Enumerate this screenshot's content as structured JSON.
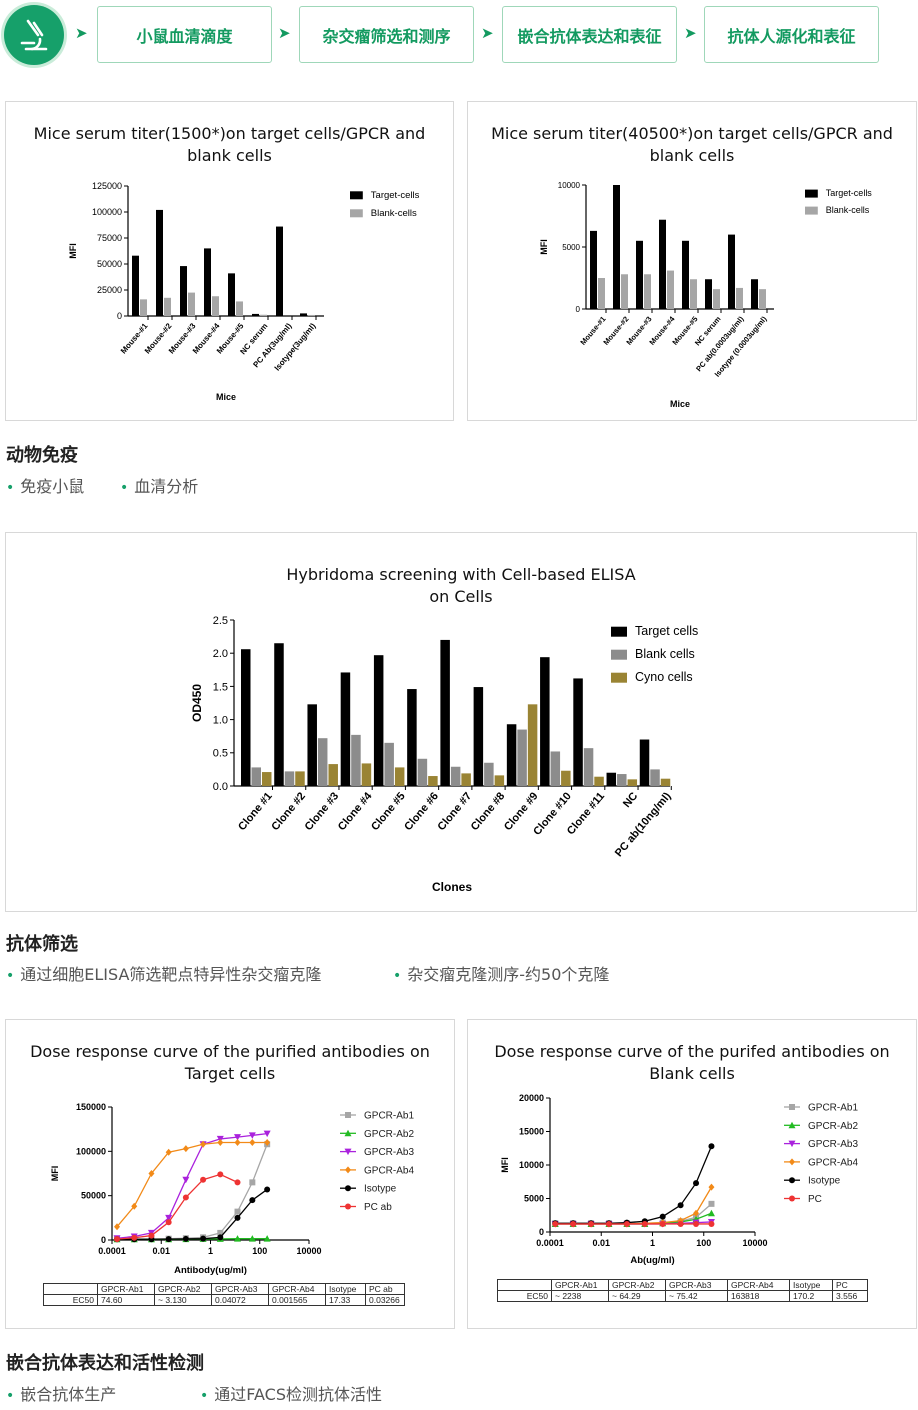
{
  "flow": {
    "steps": [
      "小鼠血清滴度",
      "杂交瘤筛选和测序",
      "嵌合抗体表达和表征",
      "抗体人源化和表征"
    ],
    "arrow": "➤",
    "logo_icon": "microscope-icon"
  },
  "sections": [
    {
      "title": "动物免疫",
      "bullets": [
        "免疫小鼠",
        "血清分析"
      ]
    },
    {
      "title": "抗体筛选",
      "bullets": [
        "通过细胞ELISA筛选靶点特异性杂交瘤克隆",
        "杂交瘤克隆测序-约50个克隆"
      ]
    },
    {
      "title": "嵌合抗体表达和活性检测",
      "bullets": [
        "嵌合抗体生产",
        "通过FACS检测抗体活性"
      ]
    }
  ],
  "chart_data": [
    {
      "type": "bar",
      "title": "Mice serum titer(1500*)on target cells/GPCR and blank cells",
      "title_lines": [
        "Mice serum titer(1500*)on target cells/GPCR and",
        "blank cells"
      ],
      "xlabel": "Mice",
      "ylabel": "MFI",
      "ylim": [
        0,
        125000
      ],
      "yticks": [
        "0",
        "25000",
        "50000",
        "75000",
        "100000",
        "125000"
      ],
      "categories": [
        "Mouse-#1",
        "Mouse-#2",
        "Mouse-#3",
        "Mouse-#4",
        "Mouse-#5",
        "NC serum",
        "PC Ab(3ug/ml)",
        "Isotype(3ug/ml)"
      ],
      "series": [
        {
          "name": "Target-cells",
          "color": "#000000",
          "values": [
            58000,
            102000,
            48000,
            65000,
            41000,
            2000,
            86000,
            2500
          ]
        },
        {
          "name": "Blank-cells",
          "color": "#a6a6a6",
          "values": [
            16000,
            17500,
            22500,
            19000,
            14000,
            1200,
            0,
            1000
          ]
        }
      ],
      "legend": "top-right"
    },
    {
      "type": "bar",
      "title": "Mice serum titer(40500*)on target cells/GPCR and blank cells",
      "title_lines": [
        "Mice serum titer(40500*)on target cells/GPCR and",
        "blank cells"
      ],
      "xlabel": "Mice",
      "ylabel": "MFI",
      "ylim": [
        0,
        10000
      ],
      "yticks": [
        "0",
        "5000",
        "10000"
      ],
      "categories": [
        "Mouse-#1",
        "Mouse-#2",
        "Mouse-#3",
        "Mouse-#4",
        "Mouse-#5",
        "NC serum",
        "PC ab(0.0003ug/ml)",
        "Isotype (0.0003ug/ml)"
      ],
      "series": [
        {
          "name": "Target-cells",
          "color": "#000000",
          "values": [
            6300,
            10000,
            5500,
            7200,
            5500,
            2400,
            6000,
            2400
          ]
        },
        {
          "name": "Blank-cells",
          "color": "#a6a6a6",
          "values": [
            2500,
            2800,
            2800,
            3100,
            2400,
            1600,
            1700,
            1600
          ]
        }
      ],
      "legend": "top-right"
    },
    {
      "type": "bar",
      "title": "Hybridoma screening with Cell-based ELISA on Cells",
      "title_lines": [
        "Hybridoma screening with Cell-based ELISA",
        "on Cells"
      ],
      "xlabel": "Clones",
      "ylabel": "OD450",
      "ylim": [
        0,
        2.5
      ],
      "yticks": [
        "0.0",
        "0.5",
        "1.0",
        "1.5",
        "2.0",
        "2.5"
      ],
      "categories": [
        "Clone #1",
        "Clone #2",
        "Clone #3",
        "Clone #4",
        "Clone #5",
        "Clone #6",
        "Clone #7",
        "Clone #8",
        "Clone #9",
        "Clone #10",
        "Clone #11",
        "NC",
        "PC ab(10ng/ml)"
      ],
      "series": [
        {
          "name": "Target cells",
          "color": "#000000",
          "values": [
            2.06,
            2.15,
            1.23,
            1.71,
            1.97,
            1.46,
            2.2,
            1.49,
            0.93,
            1.94,
            1.62,
            0.2,
            0.7
          ]
        },
        {
          "name": "Blank cells",
          "color": "#8c8c8c",
          "values": [
            0.28,
            0.22,
            0.72,
            0.77,
            0.65,
            0.41,
            0.29,
            0.35,
            0.85,
            0.52,
            0.57,
            0.18,
            0.25
          ]
        },
        {
          "name": "Cyno cells",
          "color": "#9a8434",
          "values": [
            0.21,
            0.22,
            0.33,
            0.34,
            0.28,
            0.15,
            0.19,
            0.16,
            1.23,
            0.23,
            0.14,
            0.1,
            0.11
          ]
        }
      ],
      "legend": "top-right"
    },
    {
      "type": "line",
      "title": "Dose response curve of the purified antibodies on Target cells",
      "title_lines": [
        "Dose response curve of the purified antibodies on",
        "Target cells"
      ],
      "xlabel": "Antibody(ug/ml)",
      "ylabel": "MFI",
      "xscale": "log",
      "xlim": [
        0.0001,
        10000
      ],
      "xticks": [
        "0.0001",
        "0.01",
        "1",
        "100",
        "10000"
      ],
      "ylim": [
        0,
        150000
      ],
      "yticks": [
        "0",
        "50000",
        "100000",
        "150000"
      ],
      "x": [
        0.00016,
        0.0008,
        0.004,
        0.02,
        0.1,
        0.5,
        2.5,
        12.5,
        50,
        200
      ],
      "series": [
        {
          "name": "GPCR-Ab1",
          "color": "#a6a6a6",
          "marker": "square",
          "values": [
            1000,
            1000,
            1000,
            1500,
            2000,
            3000,
            8000,
            32000,
            65000,
            108000
          ]
        },
        {
          "name": "GPCR-Ab2",
          "color": "#22bb22",
          "marker": "triangle-up",
          "values": [
            800,
            800,
            800,
            900,
            1000,
            1200,
            1300,
            1500,
            1500,
            1500
          ]
        },
        {
          "name": "GPCR-Ab3",
          "color": "#aa22dd",
          "marker": "triangle-down",
          "values": [
            2000,
            4000,
            8000,
            25000,
            68000,
            108000,
            114000,
            116000,
            118000,
            120000
          ]
        },
        {
          "name": "GPCR-Ab4",
          "color": "#f28a18",
          "marker": "diamond",
          "values": [
            15000,
            38000,
            75000,
            99000,
            103000,
            108000,
            110000,
            110000,
            110000,
            110000
          ]
        },
        {
          "name": "Isotype",
          "color": "#000000",
          "marker": "circle",
          "values": [
            800,
            800,
            900,
            1000,
            1200,
            1500,
            3000,
            25000,
            45000,
            57000
          ]
        },
        {
          "name": "PC ab",
          "color": "#ee3333",
          "marker": "circle",
          "values": [
            1000,
            2500,
            5000,
            20000,
            48000,
            68000,
            74000,
            65000,
            null,
            null
          ]
        }
      ],
      "ec50_table": {
        "header": [
          "",
          "GPCR-Ab1",
          "GPCR-Ab2",
          "GPCR-Ab3",
          "GPCR-Ab4",
          "Isotype",
          "PC ab"
        ],
        "row": [
          "EC50",
          "74.60",
          "~ 3.130",
          "0.04072",
          "0.001565",
          "17.33",
          "0.03266"
        ]
      },
      "legend": "right"
    },
    {
      "type": "line",
      "title": "Dose response curve of the purifed antibodies on Blank cells",
      "title_lines": [
        "Dose response curve of the purifed antibodies on",
        "Blank cells"
      ],
      "xlabel": "Ab(ug/ml)",
      "ylabel": "MFI",
      "xscale": "log",
      "xlim": [
        0.0001,
        10000
      ],
      "xticks": [
        "0.0001",
        "0.01",
        "1",
        "100",
        "10000"
      ],
      "ylim": [
        0,
        20000
      ],
      "yticks": [
        "0",
        "5000",
        "10000",
        "15000",
        "20000"
      ],
      "x": [
        0.00016,
        0.0008,
        0.004,
        0.02,
        0.1,
        0.5,
        2.5,
        12.5,
        50,
        200
      ],
      "series": [
        {
          "name": "GPCR-Ab1",
          "color": "#a6a6a6",
          "marker": "square",
          "values": [
            1300,
            1300,
            1300,
            1300,
            1300,
            1300,
            1400,
            1600,
            2200,
            4200
          ]
        },
        {
          "name": "GPCR-Ab2",
          "color": "#22bb22",
          "marker": "triangle-up",
          "values": [
            1200,
            1200,
            1200,
            1200,
            1200,
            1200,
            1300,
            1500,
            1900,
            2800
          ]
        },
        {
          "name": "GPCR-Ab3",
          "color": "#aa22dd",
          "marker": "triangle-down",
          "values": [
            1200,
            1200,
            1200,
            1200,
            1200,
            1200,
            1200,
            1300,
            1400,
            1500
          ]
        },
        {
          "name": "GPCR-Ab4",
          "color": "#f28a18",
          "marker": "diamond",
          "values": [
            1200,
            1200,
            1200,
            1200,
            1200,
            1300,
            1400,
            1700,
            2800,
            6700
          ]
        },
        {
          "name": "Isotype",
          "color": "#000000",
          "marker": "circle",
          "values": [
            1300,
            1300,
            1300,
            1300,
            1400,
            1600,
            2300,
            4000,
            7300,
            12800
          ]
        },
        {
          "name": "PC",
          "color": "#ee3333",
          "marker": "circle",
          "values": [
            1200,
            1200,
            1200,
            1200,
            1200,
            1200,
            1200,
            1200,
            1200,
            1200
          ]
        }
      ],
      "ec50_table": {
        "header": [
          "",
          "GPCR-Ab1",
          "GPCR-Ab2",
          "GPCR-Ab3",
          "GPCR-Ab4",
          "Isotype",
          "PC"
        ],
        "row": [
          "EC50",
          "~ 2238",
          "~ 64.29",
          "~ 75.42",
          "163818",
          "170.2",
          "3.556"
        ]
      },
      "legend": "right"
    }
  ]
}
